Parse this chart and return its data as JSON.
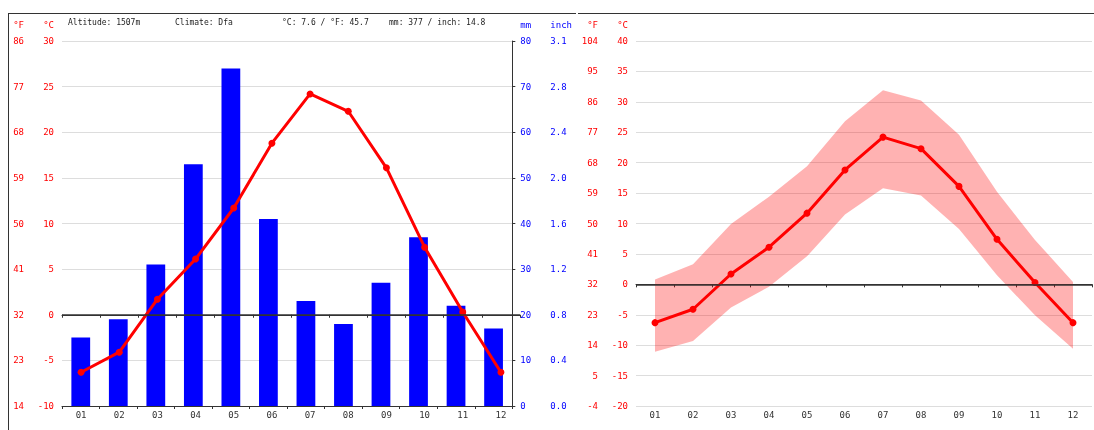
{
  "chart_data": [
    {
      "type": "bar",
      "categories": [
        "01",
        "02",
        "03",
        "04",
        "05",
        "06",
        "07",
        "08",
        "09",
        "10",
        "11",
        "12"
      ],
      "y2label": "mm",
      "y3label": "inch",
      "y2lim": [
        0,
        80
      ],
      "y2ticks": [
        0,
        10,
        20,
        30,
        40,
        50,
        60,
        70,
        80
      ],
      "y3lim": [
        0,
        3.15
      ],
      "y3ticks": [
        {
          "value": 0,
          "label": "0.0"
        },
        {
          "value": 0.394,
          "label": "0.4"
        },
        {
          "value": 0.787,
          "label": "0.8"
        },
        {
          "value": 1.181,
          "label": "1.2"
        },
        {
          "value": 1.575,
          "label": "1.6"
        },
        {
          "value": 1.969,
          "label": "2.0"
        },
        {
          "value": 2.362,
          "label": "2.4"
        },
        {
          "value": 2.756,
          "label": "2.8"
        },
        {
          "value": 3.15,
          "label": "3.1"
        }
      ],
      "series": [
        {
          "axis": "y2",
          "color": "#0000ff",
          "values": [
            15,
            19,
            31,
            53,
            74,
            41,
            23,
            18,
            27,
            37,
            22,
            17
          ]
        }
      ],
      "grid": "y",
      "tick_labels": "y"
    },
    {
      "type": "line",
      "categories": [
        "01",
        "02",
        "03",
        "04",
        "05",
        "06",
        "07",
        "08",
        "09",
        "10",
        "11",
        "12"
      ],
      "ylabel": "°C",
      "y2label": "°F",
      "ylim": [
        -10,
        30
      ],
      "yticks": [
        -10,
        -5,
        0,
        5,
        10,
        15,
        20,
        25,
        30
      ],
      "y2lim": [
        14,
        86
      ],
      "y2ticks": [
        14,
        23,
        32,
        41,
        50,
        59,
        68,
        77,
        86
      ],
      "series": [
        {
          "color": "#ff0000",
          "values": [
            -6.3,
            -4.1,
            1.7,
            6.1,
            11.7,
            18.8,
            24.2,
            22.3,
            16.1,
            7.4,
            0.3,
            -6.3
          ]
        }
      ],
      "marker": "circle",
      "ref_lines": [
        {
          "axis": "y",
          "value": 0,
          "color": "#333333"
        }
      ],
      "annotations": [
        "Altitude: 1507m",
        "Climate: Dfa",
        "°C: 7.6 / °F: 45.7",
        "mm: 377 / inch: 14.8"
      ]
    },
    {
      "type": "line",
      "categories": [
        "01",
        "02",
        "03",
        "04",
        "05",
        "06",
        "07",
        "08",
        "09",
        "10",
        "11",
        "12"
      ],
      "ylabel": "°C",
      "y2label": "°F",
      "ylim": [
        -20,
        40
      ],
      "yticks": [
        -20,
        -15,
        -10,
        -5,
        0,
        5,
        10,
        15,
        20,
        25,
        30,
        35,
        40
      ],
      "y2lim": [
        -4,
        104
      ],
      "y2ticks": [
        -4,
        5,
        14,
        23,
        32,
        41,
        50,
        59,
        68,
        77,
        86,
        95,
        104
      ],
      "series": [
        {
          "color": "#ff0000",
          "values": [
            -6.3,
            -4.1,
            1.7,
            6.1,
            11.7,
            18.8,
            24.2,
            22.3,
            16.1,
            7.4,
            0.3,
            -6.3
          ],
          "lower": [
            -11.1,
            -9.3,
            -3.8,
            -0.4,
            4.6,
            11.5,
            15.8,
            14.6,
            9.1,
            1.5,
            -5.1,
            -10.6
          ],
          "upper": [
            0.8,
            3.3,
            9.9,
            14.4,
            19.4,
            26.8,
            31.9,
            30.2,
            24.6,
            15.2,
            7.3,
            0.4
          ]
        }
      ],
      "marker": "circle",
      "grid": "y",
      "ref_lines": [
        {
          "axis": "y",
          "value": 0,
          "color": "#333333"
        }
      ]
    }
  ]
}
